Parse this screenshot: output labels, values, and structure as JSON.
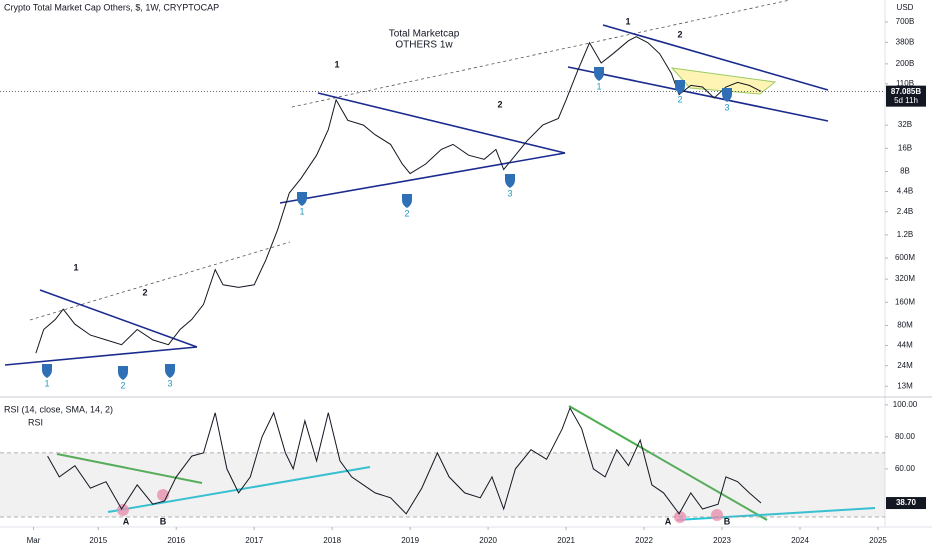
{
  "header": {
    "symbol": "Crypto Total Market Cap Others, $, 1W, CRYPTOCAP",
    "currency": "USD"
  },
  "chart_data": [
    {
      "type": "line",
      "title": "Total Marketcap",
      "subtitle": "OTHERS 1w",
      "log_scale": true,
      "color": "#131722",
      "xlim": [
        2013.74,
        2025.09
      ],
      "ylim": [
        10000000,
        1350000000000
      ],
      "yticks": [
        {
          "value": 700000000000,
          "label": "700B"
        },
        {
          "value": 380000000000,
          "label": "380B"
        },
        {
          "value": 200000000000,
          "label": "200B"
        },
        {
          "value": 110000000000,
          "label": "110B"
        },
        {
          "value": 32000000000,
          "label": "32B"
        },
        {
          "value": 16000000000,
          "label": "16B"
        },
        {
          "value": 8000000000,
          "label": "8B"
        },
        {
          "value": 4400000000,
          "label": "4.4B"
        },
        {
          "value": 2400000000,
          "label": "2.4B"
        },
        {
          "value": 1200000000,
          "label": "1.2B"
        },
        {
          "value": 600000000,
          "label": "600M"
        },
        {
          "value": 320000000,
          "label": "320M"
        },
        {
          "value": 160000000,
          "label": "160M"
        },
        {
          "value": 80000000,
          "label": "80M"
        },
        {
          "value": 44000000,
          "label": "44M"
        },
        {
          "value": 24000000,
          "label": "24M"
        },
        {
          "value": 13000000,
          "label": "13M"
        }
      ],
      "x": [
        2014.2,
        2014.3,
        2014.45,
        2014.55,
        2014.7,
        2014.9,
        2015.1,
        2015.3,
        2015.5,
        2015.7,
        2015.9,
        2016.05,
        2016.2,
        2016.35,
        2016.5,
        2016.6,
        2016.8,
        2017.0,
        2017.15,
        2017.3,
        2017.45,
        2017.6,
        2017.8,
        2017.95,
        2018.05,
        2018.2,
        2018.4,
        2018.55,
        2018.75,
        2018.9,
        2019.0,
        2019.2,
        2019.4,
        2019.55,
        2019.75,
        2019.95,
        2020.1,
        2020.2,
        2020.35,
        2020.5,
        2020.7,
        2020.9,
        2021.0,
        2021.15,
        2021.3,
        2021.45,
        2021.6,
        2021.8,
        2021.9,
        2022.05,
        2022.2,
        2022.35,
        2022.45,
        2022.6,
        2022.75,
        2022.9,
        2023.05,
        2023.2,
        2023.35,
        2023.5
      ],
      "values": [
        35000000,
        71000000,
        96000000,
        130000000,
        83000000,
        60000000,
        52000000,
        45000000,
        71000000,
        52000000,
        45000000,
        71000000,
        96000000,
        150000000,
        425000000,
        270000000,
        250000000,
        270000000,
        570000000,
        1400000000,
        4200000000,
        6500000000,
        13000000000,
        28000000000,
        68000000000,
        37000000000,
        32000000000,
        24000000000,
        18000000000,
        10000000000,
        7500000000,
        10000000000,
        15500000000,
        18000000000,
        13000000000,
        11500000000,
        15500000000,
        8500000000,
        13000000000,
        20000000000,
        32000000000,
        39000000000,
        68000000000,
        165000000000,
        375000000000,
        205000000000,
        270000000000,
        400000000000,
        450000000000,
        375000000000,
        270000000000,
        150000000000,
        80000000000,
        105000000000,
        100000000000,
        72000000000,
        100000000000,
        115000000000,
        105000000000,
        88000000000
      ],
      "last_value": {
        "value": 87085000000,
        "label": "87.085B"
      },
      "countdown": "5d 11h",
      "annotations": [
        "1",
        "1",
        "1",
        "2",
        "2",
        "2",
        "1",
        "1",
        "1",
        "2",
        "2",
        "2",
        "3",
        "3",
        "3"
      ]
    },
    {
      "type": "line",
      "title": "RSI (14, close, SMA, 14, 2)",
      "subtitle": "RSI",
      "color": "#131722",
      "xlim": [
        2013.74,
        2025.09
      ],
      "ylim": [
        25,
        103
      ],
      "yticks": [
        {
          "value": 100,
          "label": "100.00"
        },
        {
          "value": 80,
          "label": "80.00"
        },
        {
          "value": 60,
          "label": "60.00"
        }
      ],
      "band": [
        30,
        70
      ],
      "xticks": [
        {
          "value": 2014.17,
          "label": "Mar"
        },
        2015,
        2016,
        2017,
        2018,
        2019,
        2020,
        2021,
        2022,
        2023,
        2024,
        2025
      ],
      "x": [
        2014.35,
        2014.5,
        2014.7,
        2014.9,
        2015.1,
        2015.3,
        2015.5,
        2015.7,
        2015.85,
        2016.0,
        2016.2,
        2016.35,
        2016.5,
        2016.65,
        2016.8,
        2016.95,
        2017.1,
        2017.25,
        2017.4,
        2017.5,
        2017.65,
        2017.8,
        2017.95,
        2018.1,
        2018.25,
        2018.4,
        2018.55,
        2018.75,
        2018.95,
        2019.15,
        2019.35,
        2019.5,
        2019.7,
        2019.9,
        2020.05,
        2020.2,
        2020.35,
        2020.55,
        2020.75,
        2020.95,
        2021.05,
        2021.2,
        2021.35,
        2021.5,
        2021.65,
        2021.8,
        2021.95,
        2022.1,
        2022.25,
        2022.45,
        2022.6,
        2022.75,
        2022.95,
        2023.05,
        2023.2,
        2023.35,
        2023.5
      ],
      "values": [
        68,
        55,
        62,
        48,
        52,
        35,
        50,
        38,
        40,
        55,
        68,
        70,
        95,
        60,
        45,
        55,
        80,
        95,
        70,
        60,
        90,
        65,
        95,
        65,
        55,
        50,
        45,
        42,
        32,
        48,
        70,
        55,
        45,
        42,
        55,
        35,
        60,
        72,
        66,
        85,
        98,
        85,
        60,
        55,
        72,
        62,
        78,
        50,
        45,
        32,
        45,
        35,
        38,
        55,
        52,
        45,
        38.7
      ],
      "last_label": "38.70",
      "annotations": [
        "A",
        "B",
        "A",
        "B"
      ]
    }
  ]
}
